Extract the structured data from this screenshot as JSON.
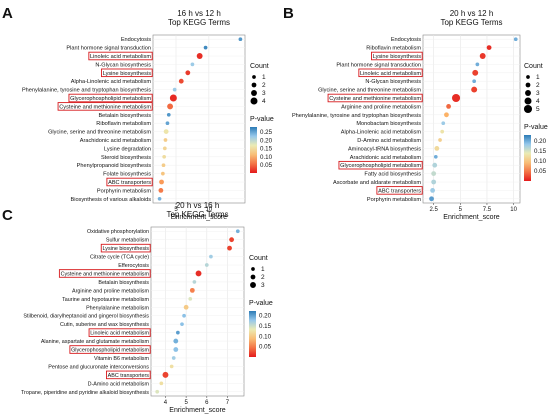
{
  "chart_data": [
    {
      "panel_letter": "A",
      "type": "scatter",
      "title": "16 h vs 12 h",
      "subtitle": "Top KEGG Terms",
      "xlabel": "Enrichment_score",
      "xlim": [
        1.5,
        15.5
      ],
      "xticks": [
        5,
        10
      ],
      "grid": true,
      "legend_placement": "right",
      "highlight_color": "#d7191c",
      "count_legend": {
        "title": "Count",
        "values": [
          1,
          2,
          3,
          4
        ]
      },
      "color_legend": {
        "title": "P-value",
        "ticks": [
          0.25,
          0.2,
          0.15,
          0.1,
          0.05
        ],
        "range": [
          0.0,
          0.28
        ]
      },
      "points": [
        {
          "term": "Endocytosis",
          "x": 14.8,
          "count": 1,
          "p": 0.26,
          "highlight": false
        },
        {
          "term": "Plant hormone signal transduction",
          "x": 9.5,
          "count": 1,
          "p": 0.27,
          "highlight": false
        },
        {
          "term": "Linoleic acid metabolism",
          "x": 8.6,
          "count": 3,
          "p": 0.012,
          "highlight": true
        },
        {
          "term": "N-Glycan biosynthesis",
          "x": 7.5,
          "count": 1,
          "p": 0.22,
          "highlight": false
        },
        {
          "term": "Lysine biosynthesis",
          "x": 6.8,
          "count": 2,
          "p": 0.02,
          "highlight": true
        },
        {
          "term": "Alpha-Linolenic acid metabolism",
          "x": 5.8,
          "count": 2,
          "p": 0.03,
          "highlight": false
        },
        {
          "term": "Phenylalanine, tyrosine and tryptophan biosynthesis",
          "x": 4.8,
          "count": 1,
          "p": 0.22,
          "highlight": false
        },
        {
          "term": "Glycerophospholipid metabolism",
          "x": 4.6,
          "count": 4,
          "p": 0.01,
          "highlight": true
        },
        {
          "term": "Cysteine and methionine metabolism",
          "x": 4.1,
          "count": 3,
          "p": 0.05,
          "highlight": true
        },
        {
          "term": "Betalain biosynthesis",
          "x": 3.9,
          "count": 1,
          "p": 0.26,
          "highlight": false
        },
        {
          "term": "Riboflavin metabolism",
          "x": 3.7,
          "count": 1,
          "p": 0.25,
          "highlight": false
        },
        {
          "term": "Glycine, serine and threonine metabolism",
          "x": 3.5,
          "count": 2,
          "p": 0.16,
          "highlight": false
        },
        {
          "term": "Arachidonic acid metabolism",
          "x": 3.4,
          "count": 1,
          "p": 0.13,
          "highlight": false
        },
        {
          "term": "Lysine degradation",
          "x": 3.3,
          "count": 1,
          "p": 0.14,
          "highlight": false
        },
        {
          "term": "Steroid biosynthesis",
          "x": 3.2,
          "count": 1,
          "p": 0.15,
          "highlight": false
        },
        {
          "term": "Phenylpropanoid biosynthesis",
          "x": 3.1,
          "count": 1,
          "p": 0.13,
          "highlight": false
        },
        {
          "term": "Folate biosynthesis",
          "x": 3.0,
          "count": 1,
          "p": 0.12,
          "highlight": false
        },
        {
          "term": "ABC transporters",
          "x": 2.8,
          "count": 2,
          "p": 0.08,
          "highlight": true
        },
        {
          "term": "Porphyrin metabolism",
          "x": 2.7,
          "count": 2,
          "p": 0.06,
          "highlight": false
        },
        {
          "term": "Biosynthesis of various alkaloids",
          "x": 2.5,
          "count": 1,
          "p": 0.24,
          "highlight": false
        }
      ]
    },
    {
      "panel_letter": "B",
      "type": "scatter",
      "title": "20 h vs 12 h",
      "subtitle": "Top KEGG Terms",
      "xlabel": "Enrichment_score",
      "xlim": [
        1.5,
        10.6
      ],
      "xticks": [
        2.5,
        5.0,
        7.5,
        10.0
      ],
      "grid": true,
      "legend_placement": "right",
      "highlight_color": "#d7191c",
      "count_legend": {
        "title": "Count",
        "values": [
          1,
          2,
          3,
          4,
          5
        ]
      },
      "color_legend": {
        "title": "P-value",
        "ticks": [
          0.2,
          0.15,
          0.1,
          0.05
        ],
        "range": [
          0.0,
          0.23
        ]
      },
      "points": [
        {
          "term": "Endocytosis",
          "x": 10.2,
          "count": 1,
          "p": 0.2,
          "highlight": false
        },
        {
          "term": "Riboflavin metabolism",
          "x": 7.7,
          "count": 2,
          "p": 0.01,
          "highlight": false
        },
        {
          "term": "Lysine biosynthesis",
          "x": 7.1,
          "count": 3,
          "p": 0.015,
          "highlight": true
        },
        {
          "term": "Plant hormone signal transduction",
          "x": 6.6,
          "count": 1,
          "p": 0.2,
          "highlight": false
        },
        {
          "term": "Linoleic acid metabolism",
          "x": 6.4,
          "count": 3,
          "p": 0.02,
          "highlight": true
        },
        {
          "term": "N-Glycan biosynthesis",
          "x": 6.3,
          "count": 1,
          "p": 0.2,
          "highlight": false
        },
        {
          "term": "Glycine, serine and threonine metabolism",
          "x": 6.3,
          "count": 3,
          "p": 0.02,
          "highlight": false
        },
        {
          "term": "Cysteine and methionine metabolism",
          "x": 4.6,
          "count": 5,
          "p": 0.01,
          "highlight": true
        },
        {
          "term": "Arginine and proline metabolism",
          "x": 3.9,
          "count": 2,
          "p": 0.04,
          "highlight": false
        },
        {
          "term": "Phenylalanine, tyrosine and tryptophan biosynthesis",
          "x": 3.7,
          "count": 2,
          "p": 0.08,
          "highlight": false
        },
        {
          "term": "Monobactam biosynthesis",
          "x": 3.4,
          "count": 1,
          "p": 0.18,
          "highlight": false
        },
        {
          "term": "Alpha-Linolenic acid metabolism",
          "x": 3.3,
          "count": 1,
          "p": 0.13,
          "highlight": false
        },
        {
          "term": "D-Amino acid metabolism",
          "x": 3.1,
          "count": 1,
          "p": 0.11,
          "highlight": false
        },
        {
          "term": "Aminoacyl-tRNA biosynthesis",
          "x": 2.8,
          "count": 2,
          "p": 0.12,
          "highlight": false
        },
        {
          "term": "Arachidonic acid metabolism",
          "x": 2.7,
          "count": 1,
          "p": 0.2,
          "highlight": false
        },
        {
          "term": "Glycerophospholipid metabolism",
          "x": 2.6,
          "count": 2,
          "p": 0.17,
          "highlight": true
        },
        {
          "term": "Fatty acid biosynthesis",
          "x": 2.5,
          "count": 2,
          "p": 0.16,
          "highlight": false
        },
        {
          "term": "Ascorbate and aldarate metabolism",
          "x": 2.5,
          "count": 2,
          "p": 0.17,
          "highlight": false
        },
        {
          "term": "ABC transporters",
          "x": 2.4,
          "count": 2,
          "p": 0.18,
          "highlight": true
        },
        {
          "term": "Porphyrin metabolism",
          "x": 2.3,
          "count": 2,
          "p": 0.21,
          "highlight": false
        }
      ]
    },
    {
      "panel_letter": "C",
      "type": "scatter",
      "title": "20 h vs 16 h",
      "subtitle": "Top KEGG Terms",
      "xlabel": "Enrichment_score",
      "xlim": [
        3.3,
        7.8
      ],
      "xticks": [
        4,
        5,
        6,
        7
      ],
      "grid": true,
      "legend_placement": "right",
      "highlight_color": "#d7191c",
      "count_legend": {
        "title": "Count",
        "values": [
          1,
          2,
          3
        ]
      },
      "color_legend": {
        "title": "P-value",
        "ticks": [
          0.2,
          0.15,
          0.1,
          0.05
        ],
        "range": [
          0.0,
          0.22
        ]
      },
      "points": [
        {
          "term": "Oxidative phosphorylation",
          "x": 7.5,
          "count": 1,
          "p": 0.19,
          "highlight": false
        },
        {
          "term": "Sulfur metabolism",
          "x": 7.2,
          "count": 2,
          "p": 0.02,
          "highlight": false
        },
        {
          "term": "Lysine biosynthesis",
          "x": 7.1,
          "count": 2,
          "p": 0.02,
          "highlight": true
        },
        {
          "term": "Citrate cycle (TCA cycle)",
          "x": 6.2,
          "count": 1,
          "p": 0.17,
          "highlight": false
        },
        {
          "term": "Efferocytosis",
          "x": 6.0,
          "count": 1,
          "p": 0.16,
          "highlight": false
        },
        {
          "term": "Cysteine and methionine metabolism",
          "x": 5.6,
          "count": 3,
          "p": 0.01,
          "highlight": true
        },
        {
          "term": "Betalain biosynthesis",
          "x": 5.4,
          "count": 1,
          "p": 0.16,
          "highlight": false
        },
        {
          "term": "Arginine and proline metabolism",
          "x": 5.3,
          "count": 2,
          "p": 0.05,
          "highlight": false
        },
        {
          "term": "Taurine and hypotaurine metabolism",
          "x": 5.2,
          "count": 1,
          "p": 0.14,
          "highlight": false
        },
        {
          "term": "Phenylalanine metabolism",
          "x": 5.0,
          "count": 2,
          "p": 0.1,
          "highlight": false
        },
        {
          "term": "Stilbenoid, diarylheptanoid and gingerol biosynthesis",
          "x": 4.9,
          "count": 1,
          "p": 0.18,
          "highlight": false
        },
        {
          "term": "Cutin, suberine and wax biosynthesis",
          "x": 4.8,
          "count": 1,
          "p": 0.18,
          "highlight": false
        },
        {
          "term": "Linoleic acid metabolism",
          "x": 4.6,
          "count": 1,
          "p": 0.2,
          "highlight": true
        },
        {
          "term": "Alanine, aspartate and glutamate metabolism",
          "x": 4.5,
          "count": 2,
          "p": 0.19,
          "highlight": false
        },
        {
          "term": "Glycerophospholipid metabolism",
          "x": 4.5,
          "count": 2,
          "p": 0.18,
          "highlight": true
        },
        {
          "term": "Vitamin B6 metabolism",
          "x": 4.4,
          "count": 1,
          "p": 0.17,
          "highlight": false
        },
        {
          "term": "Pentose and glucuronate interconversions",
          "x": 4.3,
          "count": 1,
          "p": 0.12,
          "highlight": false
        },
        {
          "term": "ABC transporters",
          "x": 4.0,
          "count": 3,
          "p": 0.02,
          "highlight": true
        },
        {
          "term": "D-Amino acid metabolism",
          "x": 3.8,
          "count": 1,
          "p": 0.12,
          "highlight": false
        },
        {
          "term": "Tropane, piperidine and pyridine alkaloid biosynthesis",
          "x": 3.6,
          "count": 1,
          "p": 0.14,
          "highlight": false
        }
      ]
    }
  ]
}
